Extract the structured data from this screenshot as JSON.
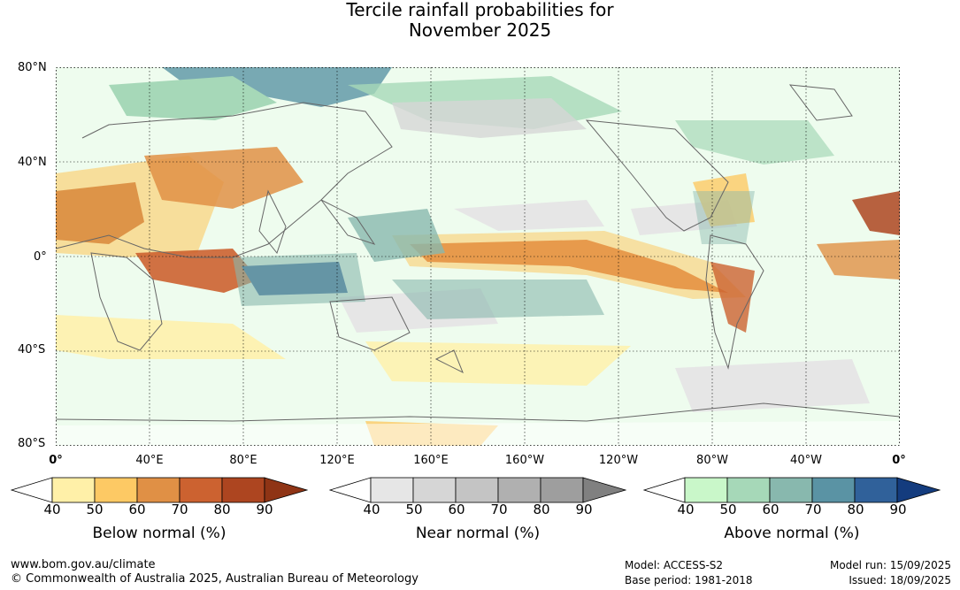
{
  "title_line1": "Tercile rainfall probabilities for",
  "title_line2": "November 2025",
  "lat_labels": [
    "80°N",
    "40°N",
    "0°",
    "40°S",
    "80°S"
  ],
  "lon_labels": [
    "0°",
    "40°E",
    "80°E",
    "120°E",
    "160°E",
    "160°W",
    "120°W",
    "80°W",
    "40°W",
    "0°"
  ],
  "colorbars": [
    {
      "label": "Below normal (%)",
      "ticks": [
        "40",
        "50",
        "60",
        "70",
        "80",
        "90"
      ],
      "colors": [
        "#fff0a8",
        "#fdc964",
        "#e09045",
        "#cc6230",
        "#ad4520",
        "#8f3415"
      ]
    },
    {
      "label": "Near normal (%)",
      "ticks": [
        "40",
        "50",
        "60",
        "70",
        "80",
        "90"
      ],
      "colors": [
        "#e6e6e6",
        "#d6d6d6",
        "#c4c4c4",
        "#b0b0b0",
        "#9e9e9e",
        "#808080"
      ]
    },
    {
      "label": "Above normal (%)",
      "ticks": [
        "40",
        "50",
        "60",
        "70",
        "80",
        "90"
      ],
      "colors": [
        "#c9f7c9",
        "#a6d8b8",
        "#88b8ae",
        "#5a93a4",
        "#30619a",
        "#143c7e"
      ]
    }
  ],
  "footer": {
    "url": "www.bom.gov.au/climate",
    "copyright": "© Commonwealth of Australia 2025, Australian Bureau of Meteorology",
    "model": "Model: ACCESS-S2",
    "base_period": "Base period: 1981-2018",
    "model_run": "Model run: 15/09/2025",
    "issued": "Issued: 18/09/2025"
  }
}
